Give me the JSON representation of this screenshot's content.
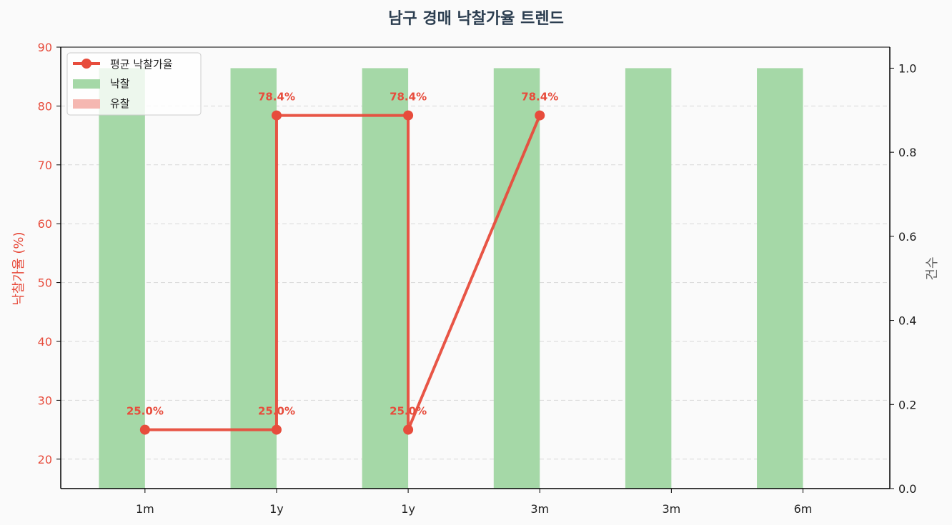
{
  "chart_data": {
    "type": "bar+line",
    "title": "남구 경매 낙찰가율 트렌드",
    "categories": [
      "1m",
      "1y",
      "1y",
      "3m",
      "3m",
      "6m"
    ],
    "y_left": {
      "label": "낙찰가율 (%)",
      "range": [
        15,
        90
      ],
      "ticks": [
        20,
        30,
        40,
        50,
        60,
        70,
        80,
        90
      ]
    },
    "y_right": {
      "label": "건수",
      "range": [
        0,
        1.05
      ],
      "ticks": [
        "0.0",
        "0.2",
        "0.4",
        "0.6",
        "0.8",
        "1.0"
      ]
    },
    "series": [
      {
        "name": "낙찰",
        "kind": "bar",
        "axis": "right",
        "values": [
          1,
          1,
          1,
          1,
          1,
          1
        ],
        "color": "#a5d8a7"
      },
      {
        "name": "유찰",
        "kind": "bar",
        "axis": "right",
        "values": [
          0,
          0,
          0,
          0,
          0,
          0
        ],
        "color": "#f5b7b1"
      },
      {
        "name": "평균 낙찰가율",
        "kind": "line",
        "axis": "left",
        "color": "#e74c3c",
        "points": [
          {
            "x": 0,
            "y": 25.0
          },
          {
            "x": 1,
            "y": 25.0
          },
          {
            "x": 1,
            "y": 78.4
          },
          {
            "x": 2,
            "y": 78.4
          },
          {
            "x": 2,
            "y": 25.0
          },
          {
            "x": 3,
            "y": 78.4
          }
        ],
        "labels": [
          "25.0%",
          "25.0%",
          "78.4%",
          "78.4%",
          "25.0%",
          "78.4%"
        ]
      }
    ],
    "grid": true,
    "legend": "top-left"
  }
}
